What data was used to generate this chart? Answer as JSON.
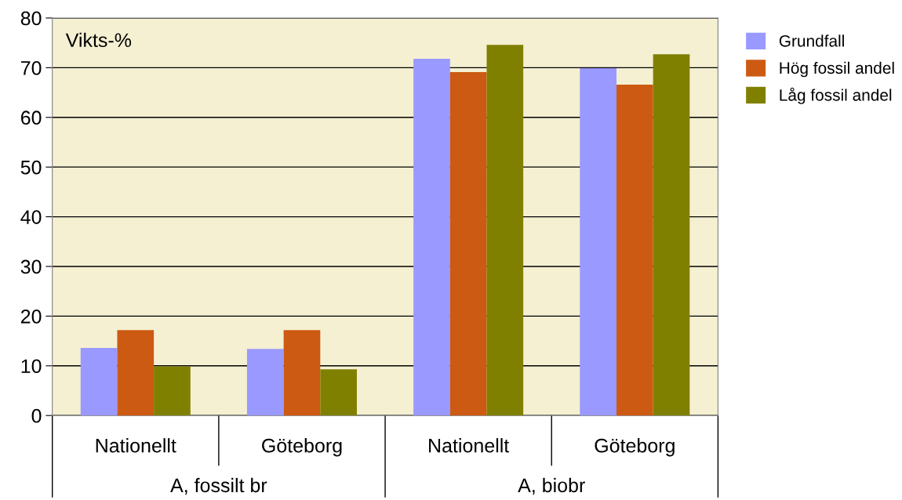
{
  "chart_data": {
    "type": "bar",
    "ylabel": "Vikts-%",
    "categories": [
      "Nationellt",
      "Göteborg",
      "Nationellt",
      "Göteborg"
    ],
    "series": [
      {
        "name": "Grundfall",
        "color": "#9999ff",
        "values": [
          13.6,
          13.4,
          71.8,
          69.9
        ]
      },
      {
        "name": "Hög fossil andel",
        "color": "#cc5a12",
        "values": [
          17.2,
          17.2,
          69.1,
          66.6
        ]
      },
      {
        "name": "Låg fossil andel",
        "color": "#808000",
        "values": [
          9.9,
          9.3,
          74.6,
          72.7
        ]
      }
    ],
    "annotations": [
      "A, fossilt br",
      "A, biobr"
    ],
    "ylim": [
      0,
      80
    ],
    "yticks": [
      0,
      10,
      20,
      30,
      40,
      50,
      60,
      70,
      80
    ],
    "grid": "y",
    "legend": "right"
  }
}
